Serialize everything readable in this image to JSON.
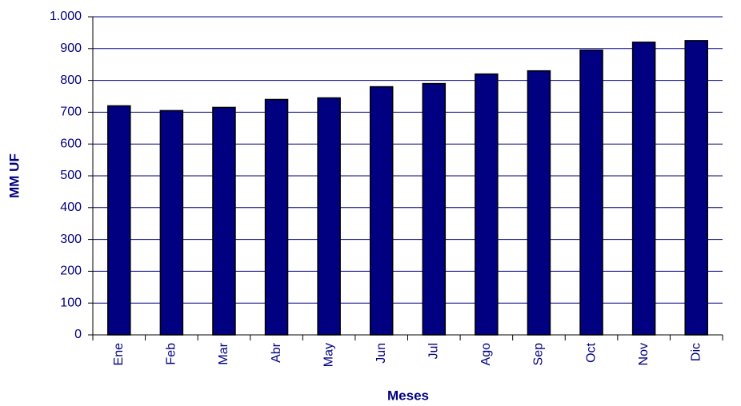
{
  "chart_data": {
    "type": "bar",
    "x_label": "Meses",
    "y_label": "MM UF",
    "categories": [
      "Ene",
      "Feb",
      "Mar",
      "Abr",
      "May",
      "Jun",
      "Jul",
      "Ago",
      "Sep",
      "Oct",
      "Nov",
      "Dic"
    ],
    "values": [
      720,
      705,
      715,
      740,
      745,
      780,
      790,
      820,
      830,
      895,
      920,
      925
    ],
    "color": "#000080",
    "ylim": [
      0,
      1000
    ],
    "yticks": [
      0,
      100,
      200,
      300,
      400,
      500,
      600,
      700,
      800,
      900,
      {
        "value": 1000,
        "label": "1.000"
      }
    ],
    "grid": true
  }
}
